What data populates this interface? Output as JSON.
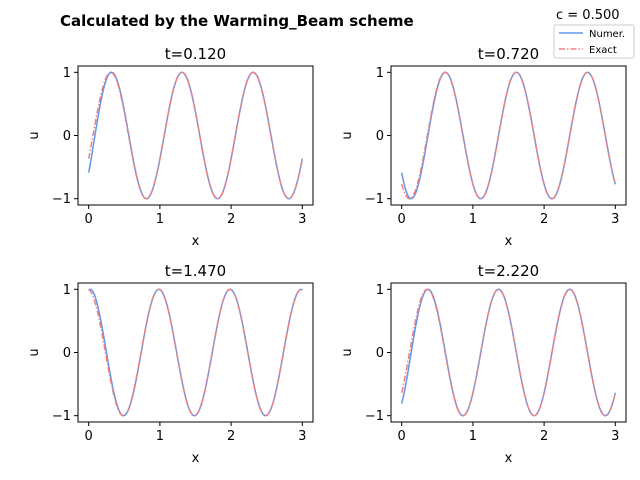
{
  "figure": {
    "suptitle": "Calculated by the Warming_Beam scheme",
    "c_label": "c = 0.500"
  },
  "legend": {
    "numer_label": "Numer.",
    "exact_label": "Exact"
  },
  "colors": {
    "numer": "#6495ed",
    "exact": "#f08080"
  },
  "chart_data": [
    {
      "type": "line",
      "title": "t=0.120",
      "xlabel": "x",
      "ylabel": "u",
      "xlim": [
        -0.15,
        3.15
      ],
      "ylim": [
        -1.1,
        1.1
      ],
      "xticks": [
        0,
        1,
        2,
        3
      ],
      "yticks": [
        -1,
        0,
        1
      ],
      "t": 0.12,
      "series": [
        {
          "name": "Numer.",
          "style": "solid",
          "function": "sin(2*pi*(x - 0.5*t)) + lagged front near x=0"
        },
        {
          "name": "Exact",
          "style": "dashdot",
          "function": "sin(2*pi*(x - t))"
        }
      ]
    },
    {
      "type": "line",
      "title": "t=0.720",
      "xlabel": "x",
      "ylabel": "u",
      "xlim": [
        -0.15,
        3.15
      ],
      "ylim": [
        -1.1,
        1.1
      ],
      "xticks": [
        0,
        1,
        2,
        3
      ],
      "yticks": [
        -1,
        0,
        1
      ],
      "t": 0.72,
      "series": [
        {
          "name": "Numer.",
          "style": "solid"
        },
        {
          "name": "Exact",
          "style": "dashdot"
        }
      ]
    },
    {
      "type": "line",
      "title": "t=1.470",
      "xlabel": "x",
      "ylabel": "u",
      "xlim": [
        -0.15,
        3.15
      ],
      "ylim": [
        -1.1,
        1.1
      ],
      "xticks": [
        0,
        1,
        2,
        3
      ],
      "yticks": [
        -1,
        0,
        1
      ],
      "t": 1.47,
      "series": [
        {
          "name": "Numer.",
          "style": "solid"
        },
        {
          "name": "Exact",
          "style": "dashdot"
        }
      ]
    },
    {
      "type": "line",
      "title": "t=2.220",
      "xlabel": "x",
      "ylabel": "u",
      "xlim": [
        -0.15,
        3.15
      ],
      "ylim": [
        -1.1,
        1.1
      ],
      "xticks": [
        0,
        1,
        2,
        3
      ],
      "yticks": [
        -1,
        0,
        1
      ],
      "t": 2.22,
      "series": [
        {
          "name": "Numer.",
          "style": "solid"
        },
        {
          "name": "Exact",
          "style": "dashdot"
        }
      ]
    }
  ]
}
